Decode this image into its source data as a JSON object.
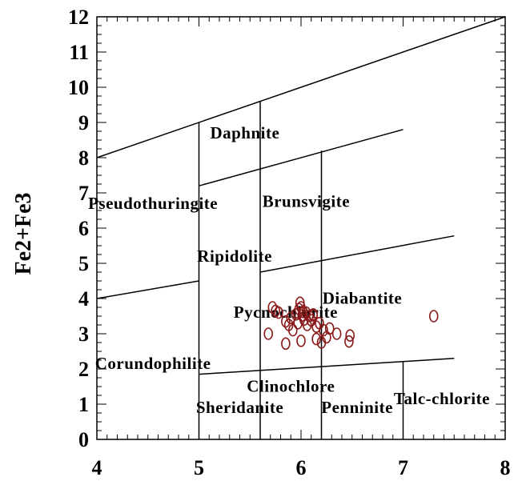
{
  "chart_data": {
    "type": "scatter",
    "title": "",
    "xlabel": "",
    "ylabel": "Fe2+Fe3",
    "xlim": [
      4,
      8
    ],
    "ylim": [
      0,
      12
    ],
    "x_ticks": [
      "4",
      "5",
      "6",
      "7",
      "8"
    ],
    "y_ticks": [
      "0",
      "1",
      "2",
      "3",
      "4",
      "5",
      "6",
      "7",
      "8",
      "9",
      "10",
      "11",
      "12"
    ],
    "grid": false,
    "marker": "open-circle",
    "marker_color": "#8b1a1a",
    "line_color": "#000000",
    "boundary_lines": [
      [
        [
          4,
          8.0
        ],
        [
          8,
          12.0
        ]
      ],
      [
        [
          5,
          7.2
        ],
        [
          7,
          8.8
        ]
      ],
      [
        [
          4,
          4.0
        ],
        [
          5,
          4.5
        ]
      ],
      [
        [
          5.6,
          4.75
        ],
        [
          7.5,
          5.78
        ]
      ],
      [
        [
          5,
          1.85
        ],
        [
          7.5,
          2.3
        ]
      ],
      [
        [
          5,
          0
        ],
        [
          5,
          9.0
        ]
      ],
      [
        [
          5.6,
          0
        ],
        [
          5.6,
          9.6
        ]
      ],
      [
        [
          6.2,
          0
        ],
        [
          6.2,
          8.2
        ]
      ],
      [
        [
          7,
          0
        ],
        [
          7,
          2.2
        ]
      ]
    ],
    "field_labels": [
      {
        "text": "Daphnite",
        "x": 5.45,
        "y": 8.55
      },
      {
        "text": "Pseudothuringite",
        "x": 4.55,
        "y": 6.55
      },
      {
        "text": "Brunsvigite",
        "x": 6.05,
        "y": 6.6
      },
      {
        "text": "Ripidolite",
        "x": 5.35,
        "y": 5.05
      },
      {
        "text": "Pycnochlorite",
        "x": 5.85,
        "y": 3.45
      },
      {
        "text": "Diabantite",
        "x": 6.6,
        "y": 3.85
      },
      {
        "text": "Corundophilite",
        "x": 4.55,
        "y": 2.0
      },
      {
        "text": "Clinochlore",
        "x": 5.9,
        "y": 1.35
      },
      {
        "text": "Sheridanite",
        "x": 5.4,
        "y": 0.75
      },
      {
        "text": "Penninite",
        "x": 6.55,
        "y": 0.75
      },
      {
        "text": "Talc-chlorite",
        "x": 7.38,
        "y": 1.0
      }
    ],
    "points": [
      [
        5.72,
        3.75
      ],
      [
        5.75,
        3.65
      ],
      [
        5.78,
        3.6
      ],
      [
        5.85,
        3.35
      ],
      [
        5.88,
        3.25
      ],
      [
        5.9,
        3.45
      ],
      [
        5.92,
        3.1
      ],
      [
        5.95,
        3.55
      ],
      [
        5.97,
        3.3
      ],
      [
        5.98,
        3.7
      ],
      [
        5.99,
        3.88
      ],
      [
        6.0,
        3.75
      ],
      [
        6.01,
        3.52
      ],
      [
        6.02,
        3.62
      ],
      [
        6.03,
        3.4
      ],
      [
        6.05,
        3.6
      ],
      [
        6.06,
        3.25
      ],
      [
        6.08,
        3.5
      ],
      [
        6.1,
        3.38
      ],
      [
        6.12,
        3.52
      ],
      [
        6.15,
        3.2
      ],
      [
        6.18,
        3.3
      ],
      [
        6.22,
        3.1
      ],
      [
        6.28,
        3.15
      ],
      [
        6.25,
        2.9
      ],
      [
        6.15,
        2.85
      ],
      [
        6.2,
        2.75
      ],
      [
        6.0,
        2.8
      ],
      [
        5.85,
        2.72
      ],
      [
        5.68,
        3.0
      ],
      [
        6.35,
        3.0
      ],
      [
        6.48,
        2.95
      ],
      [
        6.47,
        2.78
      ],
      [
        7.3,
        3.5
      ],
      [
        6.12,
        3.55
      ]
    ]
  }
}
